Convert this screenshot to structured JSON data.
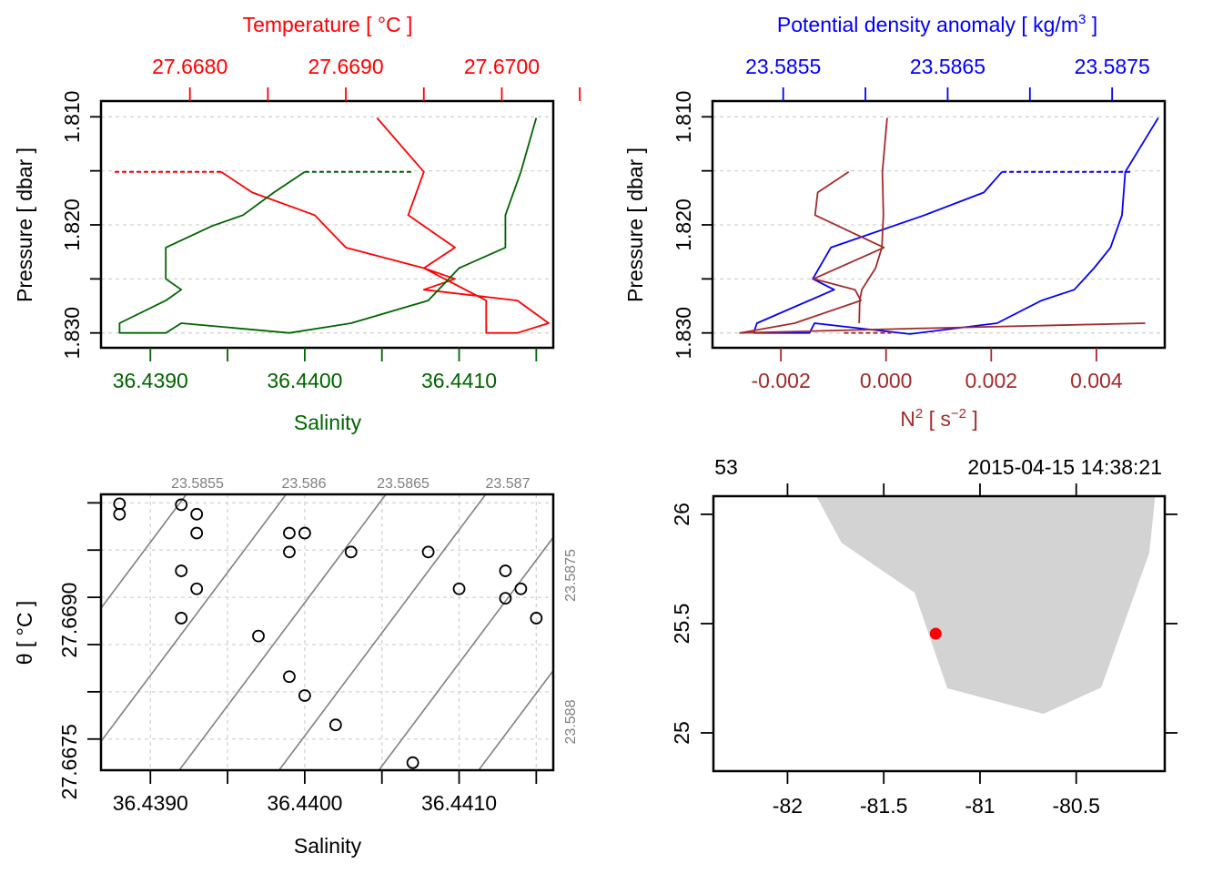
{
  "colors": {
    "temperature": "#ff0000",
    "salinity": "#006400",
    "density": "#0000ff",
    "n2": "#a52a2a",
    "grid": "#d3d3d3",
    "isopycnal": "#808080",
    "land": "#d3d3d3",
    "station": "#ff0000"
  },
  "chart_data": [
    {
      "id": "profile-ts",
      "type": "line",
      "title": "",
      "ylabel": "Pressure [ dbar ]",
      "ylim": [
        1.8307,
        1.8093
      ],
      "yticks": [
        1.81,
        1.815,
        1.82,
        1.825,
        1.83
      ],
      "ytick_labels": [
        "1.810",
        "",
        "1.820",
        "",
        "1.830"
      ],
      "top_axis": {
        "label": "Temperature [ °C ]",
        "lim": [
          27.66743,
          27.67033
        ],
        "ticks": [
          27.668,
          27.6685,
          27.669,
          27.6695,
          27.67,
          27.6705
        ],
        "tick_labels": [
          "27.6680",
          "",
          "27.6690",
          "",
          "27.6700",
          ""
        ]
      },
      "bottom_axis": {
        "label": "Salinity",
        "lim": [
          36.43868,
          36.44161
        ],
        "ticks": [
          36.439,
          36.4395,
          36.44,
          36.4405,
          36.441,
          36.4415
        ],
        "tick_labels": [
          "36.4390",
          "",
          "36.4400",
          "",
          "36.4410",
          ""
        ]
      },
      "series": [
        {
          "name": "Temperature",
          "axis": "top",
          "points": [
            [
              27.6692,
              1.8101
            ],
            [
              27.6695,
              1.8151
            ],
            [
              27.6694,
              1.8191
            ],
            [
              27.6697,
              1.8221
            ],
            [
              27.6695,
              1.824
            ],
            [
              27.6697,
              1.825
            ],
            [
              27.6695,
              1.826
            ],
            [
              27.6701,
              1.827
            ],
            [
              27.6703,
              1.8291
            ],
            [
              27.6701,
              1.83
            ],
            [
              27.6699,
              1.83
            ],
            [
              27.6699,
              1.827
            ],
            [
              27.6695,
              1.824
            ],
            [
              27.669,
              1.8221
            ],
            [
              27.6688,
              1.8191
            ],
            [
              27.6684,
              1.817
            ],
            [
              27.6682,
              1.8151
            ]
          ],
          "dashed_tail": [
            [
              27.6682,
              1.8151
            ],
            [
              27.6675,
              1.8151
            ]
          ]
        },
        {
          "name": "Salinity",
          "axis": "bottom",
          "points": [
            [
              36.4415,
              1.8101
            ],
            [
              36.4414,
              1.8151
            ],
            [
              36.4413,
              1.8191
            ],
            [
              36.4413,
              1.8221
            ],
            [
              36.441,
              1.824
            ],
            [
              36.4408,
              1.827
            ],
            [
              36.4403,
              1.8291
            ],
            [
              36.4399,
              1.83
            ],
            [
              36.4392,
              1.8291
            ],
            [
              36.4391,
              1.83
            ],
            [
              36.4388,
              1.83
            ],
            [
              36.4388,
              1.8291
            ],
            [
              36.4391,
              1.827
            ],
            [
              36.4392,
              1.826
            ],
            [
              36.4391,
              1.825
            ],
            [
              36.4391,
              1.8221
            ],
            [
              36.4394,
              1.8201
            ],
            [
              36.4396,
              1.8191
            ],
            [
              36.4398,
              1.817
            ],
            [
              36.44,
              1.8151
            ]
          ],
          "dashed_tail": [
            [
              36.44,
              1.8151
            ],
            [
              36.4407,
              1.8151
            ]
          ]
        }
      ]
    },
    {
      "id": "profile-density-n2",
      "type": "line",
      "ylabel": "Pressure [ dbar ]",
      "ylim": [
        1.8307,
        1.8093
      ],
      "yticks": [
        1.81,
        1.815,
        1.82,
        1.825,
        1.83
      ],
      "ytick_labels": [
        "1.810",
        "",
        "1.820",
        "",
        "1.830"
      ],
      "top_axis": {
        "label": "Potential density anomaly [ kg/m³ ]",
        "lim": [
          23.58507,
          23.58782
        ],
        "ticks": [
          23.5855,
          23.586,
          23.5865,
          23.587,
          23.5875
        ],
        "tick_labels": [
          "23.5855",
          "",
          "23.5865",
          "",
          "23.5875"
        ]
      },
      "bottom_axis": {
        "label": "N² [ s⁻² ]",
        "lim": [
          -0.0033,
          0.0053
        ],
        "ticks": [
          -0.002,
          0.0,
          0.002,
          0.004
        ],
        "tick_labels": [
          "-0.002",
          "0.000",
          "0.002",
          "0.004"
        ]
      },
      "series": [
        {
          "name": "Potential density anomaly",
          "axis": "top",
          "points": [
            [
              23.58778,
              1.8101
            ],
            [
              23.58758,
              1.8151
            ],
            [
              23.58756,
              1.8191
            ],
            [
              23.58749,
              1.8221
            ],
            [
              23.58739,
              1.824
            ],
            [
              23.58727,
              1.826
            ],
            [
              23.58707,
              1.827
            ],
            [
              23.5868,
              1.8291
            ],
            [
              23.58627,
              1.8301
            ],
            [
              23.58569,
              1.8291
            ],
            [
              23.58566,
              1.83
            ],
            [
              23.58532,
              1.83
            ],
            [
              23.58534,
              1.8291
            ],
            [
              23.58581,
              1.826
            ],
            [
              23.58568,
              1.825
            ],
            [
              23.58579,
              1.8221
            ],
            [
              23.58636,
              1.8191
            ],
            [
              23.58672,
              1.817
            ],
            [
              23.58683,
              1.8151
            ]
          ],
          "dashed_tail": [
            [
              23.58683,
              1.8151
            ],
            [
              23.58762,
              1.8151
            ]
          ]
        },
        {
          "name": "N2 (a)",
          "axis": "bottom",
          "points": [
            [
              2e-05,
              1.8101
            ],
            [
              -7e-05,
              1.8151
            ],
            [
              -5e-05,
              1.8191
            ],
            [
              -8e-05,
              1.8221
            ],
            [
              -0.0002,
              1.824
            ],
            [
              -0.00046,
              1.826
            ],
            [
              -0.0005,
              1.827
            ],
            [
              -0.00051,
              1.8291
            ]
          ]
        },
        {
          "name": "N2 (b)",
          "axis": "bottom",
          "points": [
            [
              -0.00071,
              1.8151
            ],
            [
              -0.0013,
              1.817
            ],
            [
              -0.00135,
              1.8191
            ],
            [
              -4e-05,
              1.8221
            ],
            [
              -0.00138,
              1.825
            ],
            [
              -0.00059,
              1.826
            ],
            [
              -0.00048,
              1.827
            ],
            [
              -0.00174,
              1.8291
            ],
            [
              -0.00278,
              1.83
            ],
            [
              0.0005,
              1.8296
            ],
            [
              0.00493,
              1.8291
            ]
          ],
          "dashed_tail": [
            [
              -0.0008,
              1.83
            ],
            [
              0.0001,
              1.83
            ]
          ]
        }
      ]
    },
    {
      "id": "ts-diagram",
      "type": "scatter",
      "xlabel": "Salinity",
      "ylabel": "θ [ °C ]",
      "xlim": [
        36.43868,
        36.44161
      ],
      "ylim": [
        27.66717,
        27.67009
      ],
      "xticks": [
        36.439,
        36.4395,
        36.44,
        36.4405,
        36.441,
        36.4415
      ],
      "xtick_labels": [
        "36.4390",
        "",
        "36.4400",
        "",
        "36.4410",
        ""
      ],
      "yticks": [
        27.6675,
        27.668,
        27.6685,
        27.669,
        27.6695,
        27.67
      ],
      "ytick_labels": [
        "27.6675",
        "",
        "",
        "27.6690",
        "",
        ""
      ],
      "isopycnal_labels_top": [
        "23.5855",
        "23.586",
        "23.5865",
        "23.587"
      ],
      "isopycnal_labels_right": [
        "23.5875",
        "23.588"
      ],
      "isopycnals": [
        23.585,
        23.5855,
        23.586,
        23.5865,
        23.587,
        23.5875,
        23.588
      ],
      "points": [
        [
          36.4388,
          27.66999
        ],
        [
          36.4388,
          27.66988
        ],
        [
          36.4392,
          27.66998
        ],
        [
          36.4393,
          27.66988
        ],
        [
          36.4393,
          27.66968
        ],
        [
          36.4392,
          27.66928
        ],
        [
          36.4393,
          27.66909
        ],
        [
          36.4392,
          27.66878
        ],
        [
          36.4397,
          27.66859
        ],
        [
          36.4399,
          27.66968
        ],
        [
          36.44,
          27.66968
        ],
        [
          36.4399,
          27.66948
        ],
        [
          36.4399,
          27.66816
        ],
        [
          36.44,
          27.66796
        ],
        [
          36.4402,
          27.66765
        ],
        [
          36.4403,
          27.66948
        ],
        [
          36.4408,
          27.66948
        ],
        [
          36.4407,
          27.66725
        ],
        [
          36.441,
          27.66909
        ],
        [
          36.4413,
          27.66928
        ],
        [
          36.4413,
          27.66899
        ],
        [
          36.4414,
          27.66909
        ],
        [
          36.4415,
          27.66878
        ]
      ]
    },
    {
      "id": "station-map",
      "type": "scatter",
      "xlim": [
        -82.385,
        -80.04
      ],
      "ylim": [
        24.825,
        26.083
      ],
      "xticks": [
        -82,
        -81.5,
        -81,
        -80.5
      ],
      "xtick_labels": [
        "-82",
        "-81.5",
        "-81",
        "-80.5"
      ],
      "yticks": [
        25,
        25.5,
        26
      ],
      "ytick_labels": [
        "25",
        "25.5",
        "26"
      ],
      "top_left_label": "53",
      "top_right_label": "2015-04-15 14:38:21",
      "land_polygon": [
        [
          -81.85,
          26.083
        ],
        [
          -81.72,
          25.87
        ],
        [
          -81.34,
          25.642
        ],
        [
          -81.17,
          25.204
        ],
        [
          -80.67,
          25.087
        ],
        [
          -80.37,
          25.208
        ],
        [
          -80.12,
          25.825
        ],
        [
          -80.09,
          26.083
        ]
      ],
      "station": [
        -81.23,
        25.454
      ]
    }
  ]
}
